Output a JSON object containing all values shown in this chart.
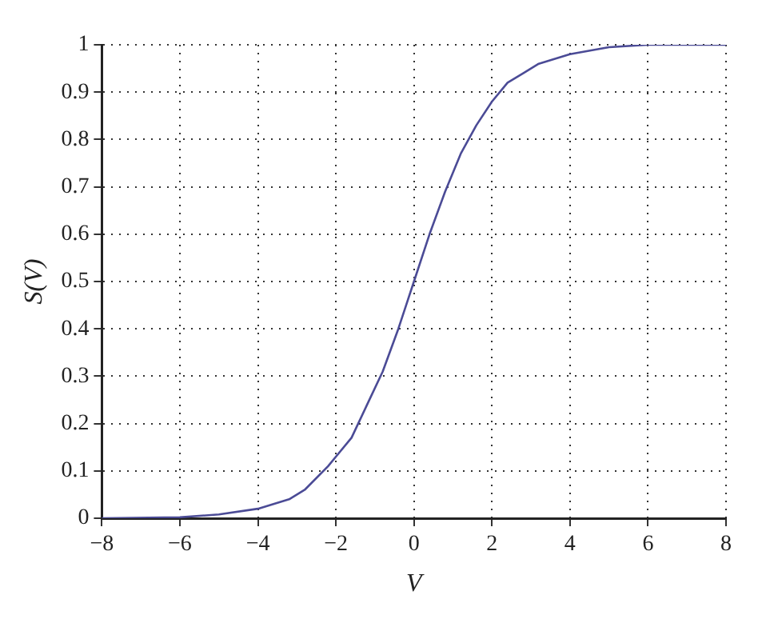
{
  "chart_data": {
    "type": "line",
    "xlabel": "V",
    "ylabel": "S(V)",
    "x": [
      -8,
      -6,
      -5,
      -4,
      -3.2,
      -2.8,
      -2.2,
      -2,
      -1.6,
      -1.2,
      -0.8,
      -0.4,
      0,
      0.4,
      0.8,
      1.2,
      1.6,
      2,
      2.4,
      2.8,
      3.2,
      4,
      5,
      6,
      8
    ],
    "series": [
      {
        "color": "#4b4b96",
        "values": [
          0,
          0.002,
          0.008,
          0.02,
          0.04,
          0.06,
          0.11,
          0.13,
          0.17,
          0.24,
          0.31,
          0.4,
          0.5,
          0.6,
          0.69,
          0.77,
          0.83,
          0.88,
          0.92,
          0.94,
          0.96,
          0.98,
          0.995,
          1,
          1
        ]
      }
    ],
    "xlim": [
      -8,
      8
    ],
    "xticks": [
      -8,
      -6,
      -4,
      -2,
      0,
      2,
      4,
      6,
      8
    ],
    "ylim": [
      0,
      1
    ],
    "yticks": [
      0,
      0.1,
      0.2,
      0.3,
      0.4,
      0.5,
      0.6,
      0.7,
      0.8,
      0.9,
      1
    ],
    "grid": true,
    "legend": false,
    "marker": "none",
    "line_style": "solid"
  }
}
